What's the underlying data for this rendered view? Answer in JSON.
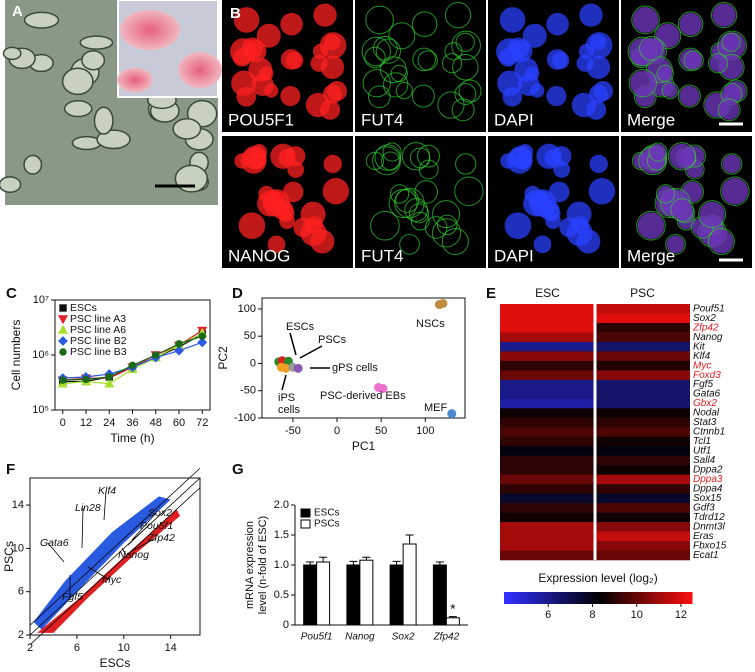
{
  "panel_labels": [
    "A",
    "B",
    "C",
    "D",
    "E",
    "F",
    "G"
  ],
  "panel_b": {
    "row1": [
      "POU5F1",
      "FUT4",
      "DAPI",
      "Merge"
    ],
    "row2": [
      "NANOG",
      "FUT4",
      "DAPI",
      "Merge"
    ]
  },
  "chart_data": [
    {
      "type": "line",
      "log_y": true,
      "xlabel": "Time (h)",
      "ylabel": "Cell numbers",
      "legend": "top-left",
      "x": [
        0,
        12,
        24,
        36,
        48,
        60,
        72
      ],
      "xlim": [
        -4,
        76
      ],
      "xticks": [
        0,
        12,
        24,
        36,
        48,
        60,
        72
      ],
      "ylim": [
        100000,
        10000000
      ],
      "yticks": [
        {
          "value": 100000,
          "label": "10⁵"
        },
        {
          "value": 1000000,
          "label": "10⁶"
        },
        {
          "value": 10000000,
          "label": "10⁷"
        }
      ],
      "series": [
        {
          "name": "ESCs",
          "color": "#111111",
          "marker": "square",
          "values": [
            330000,
            330000,
            400000,
            600000,
            900000,
            1400000,
            2400000
          ]
        },
        {
          "name": "PSC line A3",
          "color": "#e0202a",
          "marker": "triangle-down",
          "values": [
            350000,
            380000,
            380000,
            600000,
            1000000,
            1500000,
            2800000
          ]
        },
        {
          "name": "PSC line A6",
          "color": "#a8e030",
          "marker": "triangle-up",
          "values": [
            300000,
            330000,
            300000,
            550000,
            900000,
            1500000,
            2500000
          ]
        },
        {
          "name": "PSC line B2",
          "color": "#2a5ae0",
          "marker": "diamond",
          "values": [
            380000,
            400000,
            450000,
            600000,
            900000,
            1200000,
            1700000
          ]
        },
        {
          "name": "PSC line B3",
          "color": "#1a6a1a",
          "marker": "circle",
          "values": [
            350000,
            360000,
            400000,
            650000,
            1000000,
            1600000,
            2200000
          ]
        }
      ]
    },
    {
      "type": "scatter",
      "xlabel": "PC1",
      "ylabel": "PC2",
      "xlim": [
        -85,
        145
      ],
      "ylim": [
        -100,
        120
      ],
      "xticks": [
        -50,
        0,
        50,
        100
      ],
      "yticks": [
        -100,
        -50,
        0,
        50,
        100
      ],
      "points": [
        {
          "x": -66,
          "y": 3,
          "color": "#2a8a2a"
        },
        {
          "x": -62,
          "y": 5,
          "color": "#e02020"
        },
        {
          "x": -58,
          "y": 2,
          "color": "#e02020"
        },
        {
          "x": -55,
          "y": 4,
          "color": "#2a8a2a"
        },
        {
          "x": -63,
          "y": -7,
          "color": "#f0a020"
        },
        {
          "x": -58,
          "y": -9,
          "color": "#f0a020"
        },
        {
          "x": -50,
          "y": -7,
          "color": "#9a9a9a"
        },
        {
          "x": -44,
          "y": -9,
          "color": "#8a5ab0"
        },
        {
          "x": 47,
          "y": -44,
          "color": "#f070d0"
        },
        {
          "x": 52,
          "y": -46,
          "color": "#f070d0"
        },
        {
          "x": 116,
          "y": 108,
          "color": "#c08a40"
        },
        {
          "x": 120,
          "y": 110,
          "color": "#c08a40"
        },
        {
          "x": 130,
          "y": -92,
          "color": "#4a8ad0"
        }
      ],
      "annotations": [
        "ESCs",
        "PSCs",
        "gPS cells",
        "iPS cells",
        "PSC-derived EBs",
        "NSCs",
        "MEF"
      ]
    },
    {
      "type": "heatmap",
      "legend_title": "Expression level (log₂)",
      "rows": [
        "Pouf51",
        "Sox2",
        "Zfp42",
        "Nanog",
        "Kit",
        "Klf4",
        "Myc",
        "Foxd3",
        "Fgf5",
        "Gata6",
        "Gbx2",
        "Nodal",
        "Stat3",
        "Ctnnb1",
        "Tcl1",
        "Utf1",
        "Sall4",
        "Dppa2",
        "Dppa3",
        "Dppa4",
        "Sox15",
        "Gdf3",
        "Tdrd12",
        "Dnmt3l",
        "Eras",
        "Fbxo15",
        "Ecat1"
      ],
      "row_colors": [
        "#111111",
        "#111111",
        "#e02020",
        "#111111",
        "#111111",
        "#111111",
        "#e02020",
        "#e02020",
        "#111111",
        "#111111",
        "#e02020",
        "#111111",
        "#111111",
        "#111111",
        "#111111",
        "#111111",
        "#111111",
        "#111111",
        "#e02020",
        "#111111",
        "#111111",
        "#111111",
        "#111111",
        "#111111",
        "#111111",
        "#111111",
        "#111111"
      ],
      "series": [
        {
          "name": "ESC",
          "values": [
            12,
            12,
            12,
            11,
            6,
            10.5,
            9,
            10,
            6,
            6,
            5.5,
            8.5,
            9,
            9.5,
            9,
            8,
            9,
            9,
            10,
            9,
            7.5,
            9,
            8.5,
            11,
            11,
            11,
            10
          ]
        },
        {
          "name": "PSC",
          "values": [
            11.5,
            12,
            9,
            9.5,
            6.5,
            10,
            8.8,
            10.5,
            6.5,
            6.5,
            6.5,
            8.5,
            9,
            9.5,
            8.5,
            8,
            9,
            8.5,
            11,
            9,
            7.5,
            9.5,
            8.5,
            10.5,
            11.5,
            10.5,
            10
          ]
        }
      ],
      "clim": [
        4,
        12.5
      ],
      "cticks": [
        6,
        8,
        10,
        12
      ],
      "colormap": [
        "#3030ff",
        "#000000",
        "#ff1010"
      ]
    },
    {
      "type": "density-scatter",
      "xlabel": "ESCs",
      "ylabel": "PSCs",
      "xlim": [
        2,
        16.5
      ],
      "ylim": [
        2,
        16.5
      ],
      "xticks": [
        2,
        6,
        10,
        14
      ],
      "yticks": [
        2,
        6,
        10,
        14
      ],
      "colors": [
        "#2a5ae0",
        "#e02020"
      ],
      "annotations": [
        "Klf4",
        "Lin28",
        "Sox2",
        "Pou5f1",
        "Zfp42",
        "Nanog",
        "Gata6",
        "Myc",
        "Fgf5"
      ]
    },
    {
      "type": "bar",
      "ylabel": [
        "mRNA expression",
        "level (n-fold of ESC)"
      ],
      "categories": [
        "Pou5f1",
        "Nanog",
        "Sox2",
        "Zfp42"
      ],
      "ylim": [
        0,
        2
      ],
      "yticks": [
        0,
        0.5,
        {
          "value": 1,
          "label": "1.0"
        },
        1.5,
        {
          "value": 2,
          "label": "2.0"
        }
      ],
      "series": [
        {
          "name": "ESCs",
          "color": "#000000",
          "values": [
            1,
            1,
            1,
            1
          ],
          "errors": [
            0.05,
            0.06,
            0.06,
            0.05
          ]
        },
        {
          "name": "PSCs",
          "color": "#ffffff",
          "values": [
            1.05,
            1.08,
            1.35,
            0.12
          ],
          "errors": [
            0.08,
            0.05,
            0.15,
            0.02
          ]
        }
      ],
      "annotation": "*"
    }
  ]
}
